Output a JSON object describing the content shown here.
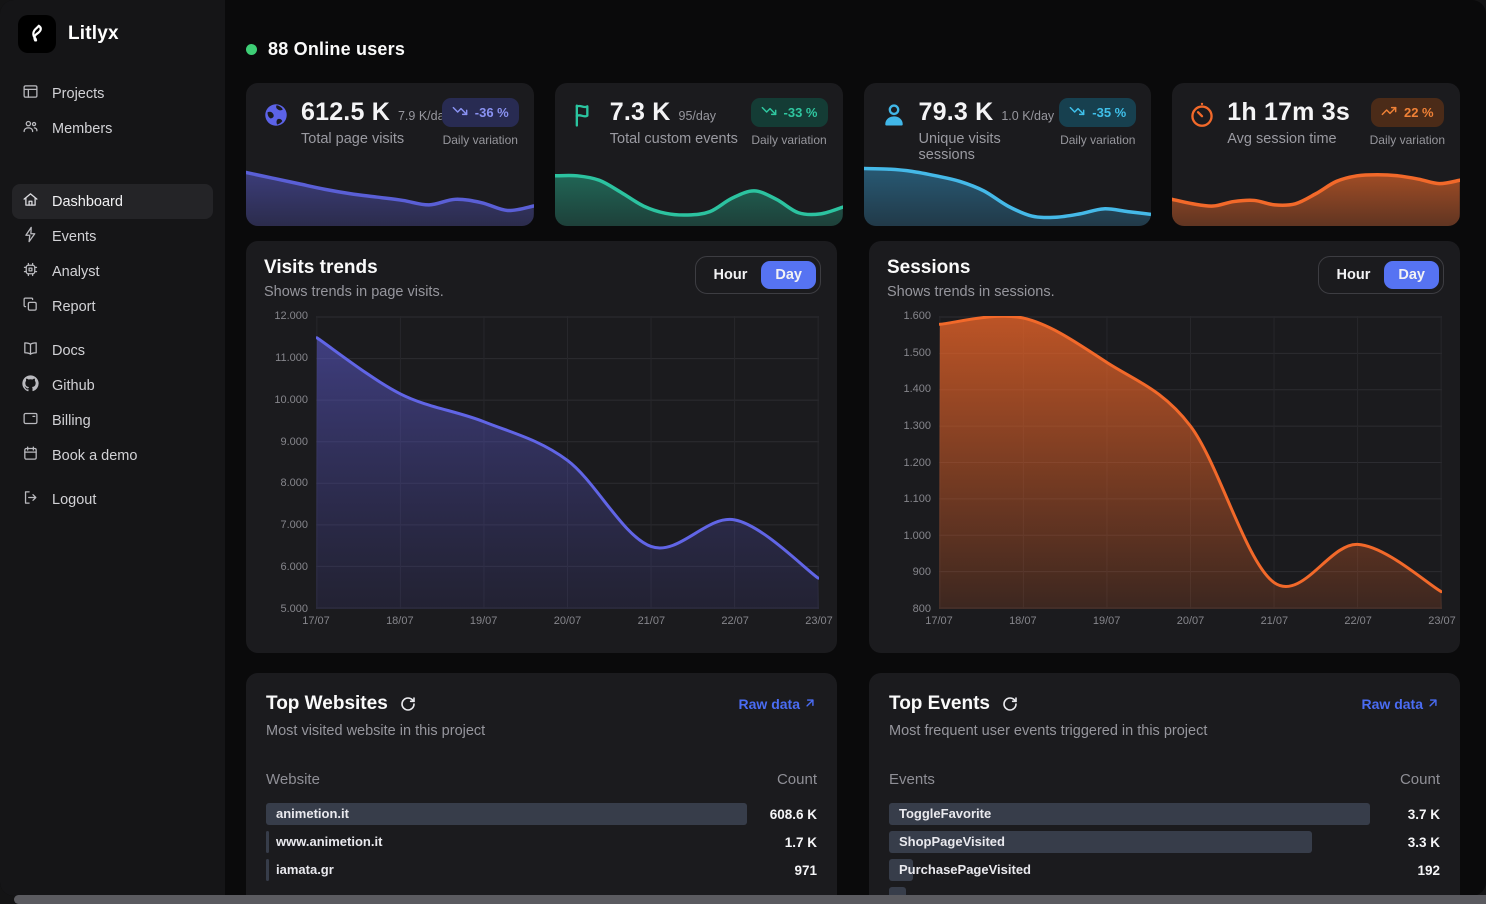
{
  "header": {
    "online_label": "88 Online users",
    "online_color": "#3ecf76"
  },
  "sidebar": {
    "brand": "Litlyx",
    "groups": [
      {
        "items": [
          {
            "label": "Projects"
          },
          {
            "label": "Members"
          }
        ]
      },
      {
        "items": [
          {
            "label": "Dashboard",
            "active": true
          },
          {
            "label": "Events"
          },
          {
            "label": "Analyst"
          },
          {
            "label": "Report"
          }
        ]
      },
      {
        "items": [
          {
            "label": "Docs"
          },
          {
            "label": "Github"
          },
          {
            "label": "Billing"
          },
          {
            "label": "Book a demo"
          }
        ]
      },
      {
        "items": [
          {
            "label": "Logout"
          }
        ]
      }
    ]
  },
  "stat_cards": [
    {
      "value": "612.5 K",
      "rate": "7.9 K/day",
      "label": "Total page visits",
      "badge": "-36 %",
      "trend": "down",
      "caption": "Daily variation",
      "accent": "#5c63e8",
      "badge_bg": "#282b52",
      "badge_fg": "#8a92f2",
      "line": "#5a5fd6",
      "fill_top": "rgba(86,88,196,0.55)",
      "fill_bottom": "rgba(86,88,196,0.28)",
      "spark_values": [
        88,
        78,
        68,
        58,
        50,
        44,
        38,
        30,
        40,
        34,
        20,
        28
      ]
    },
    {
      "value": "7.3 K",
      "rate": "95/day",
      "label": "Total custom events",
      "badge": "-33 %",
      "trend": "down",
      "caption": "Daily variation",
      "accent": "#2bc5a0",
      "badge_bg": "#143c35",
      "badge_fg": "#2fc7a0",
      "line": "#2cc3a0",
      "fill_top": "rgba(36,150,122,0.60)",
      "fill_bottom": "rgba(36,150,122,0.30)",
      "spark_values": [
        82,
        82,
        74,
        52,
        28,
        15,
        12,
        18,
        42,
        55,
        40,
        16,
        14,
        26
      ]
    },
    {
      "value": "79.3 K",
      "rate": "1.0 K/day",
      "label": "Unique visits sessions",
      "badge": "-35 %",
      "trend": "down",
      "caption": "Daily variation",
      "accent": "#41b7e8",
      "badge_bg": "#17404f",
      "badge_fg": "#3fc0ea",
      "line": "#45b9e8",
      "fill_top": "rgba(52,150,200,0.50)",
      "fill_bottom": "rgba(52,150,200,0.25)",
      "spark_values": [
        95,
        94,
        90,
        82,
        72,
        55,
        28,
        10,
        8,
        14,
        23,
        18,
        13
      ]
    },
    {
      "value": "1h 17m 3s",
      "rate": "",
      "label": "Avg session time",
      "badge": "22 %",
      "trend": "up",
      "caption": "Daily variation",
      "accent": "#f2692a",
      "badge_bg": "#4b2b18",
      "badge_fg": "#f08136",
      "line": "#f2692a",
      "fill_top": "rgba(210,95,40,0.72)",
      "fill_bottom": "rgba(210,95,40,0.38)",
      "spark_values": [
        40,
        32,
        28,
        36,
        38,
        30,
        32,
        50,
        72,
        82,
        84,
        82,
        76,
        68,
        74
      ]
    }
  ],
  "chart_data": [
    {
      "type": "area",
      "title": "Visits trends",
      "subtitle": "Shows trends in page visits.",
      "toggle": {
        "hour": "Hour",
        "day": "Day",
        "selected": "Day"
      },
      "x": [
        "17/07",
        "18/07",
        "19/07",
        "20/07",
        "21/07",
        "22/07",
        "23/07"
      ],
      "values": [
        11500,
        10150,
        9480,
        8550,
        6480,
        7120,
        5720
      ],
      "yticks": [
        "12.000",
        "11.000",
        "10.000",
        "9.000",
        "8.000",
        "7.000",
        "6.000",
        "5.000"
      ],
      "ylim": [
        5000,
        12000
      ],
      "grid": true,
      "legend": "none",
      "color": "#6165e6",
      "fill_top": "rgba(99,97,224,0.50)",
      "fill_bottom": "rgba(73,70,160,0.16)"
    },
    {
      "type": "area",
      "title": "Sessions",
      "subtitle": "Shows trends in sessions.",
      "toggle": {
        "hour": "Hour",
        "day": "Day",
        "selected": "Day"
      },
      "x": [
        "17/07",
        "18/07",
        "19/07",
        "20/07",
        "21/07",
        "22/07",
        "23/07"
      ],
      "values": [
        1580,
        1597,
        1475,
        1300,
        870,
        975,
        845
      ],
      "yticks": [
        "1.600",
        "1.500",
        "1.400",
        "1.300",
        "1.200",
        "1.100",
        "1.000",
        "900",
        "800"
      ],
      "ylim": [
        800,
        1600
      ],
      "grid": true,
      "legend": "none",
      "color": "#f2692a",
      "fill_top": "rgba(234,100,40,0.78)",
      "fill_bottom": "rgba(234,100,40,0.16)"
    }
  ],
  "tables": [
    {
      "title": "Top Websites",
      "subtitle": "Most visited website in this project",
      "link": "Raw data",
      "col_label": "Website",
      "col_count": "Count",
      "rows": [
        {
          "label": "animetion.it",
          "count": "608.6 K",
          "bar": 100
        },
        {
          "label": "www.animetion.it",
          "count": "1.7 K",
          "bar": 0.6
        },
        {
          "label": "iamata.gr",
          "count": "971",
          "bar": 0.4
        }
      ]
    },
    {
      "title": "Top Events",
      "subtitle": "Most frequent user events triggered in this project",
      "link": "Raw data",
      "col_label": "Events",
      "col_count": "Count",
      "rows": [
        {
          "label": "ToggleFavorite",
          "count": "3.7 K",
          "bar": 100
        },
        {
          "label": "ShopPageVisited",
          "count": "3.3 K",
          "bar": 88
        },
        {
          "label": "PurchasePageVisited",
          "count": "192",
          "bar": 5
        }
      ]
    }
  ]
}
